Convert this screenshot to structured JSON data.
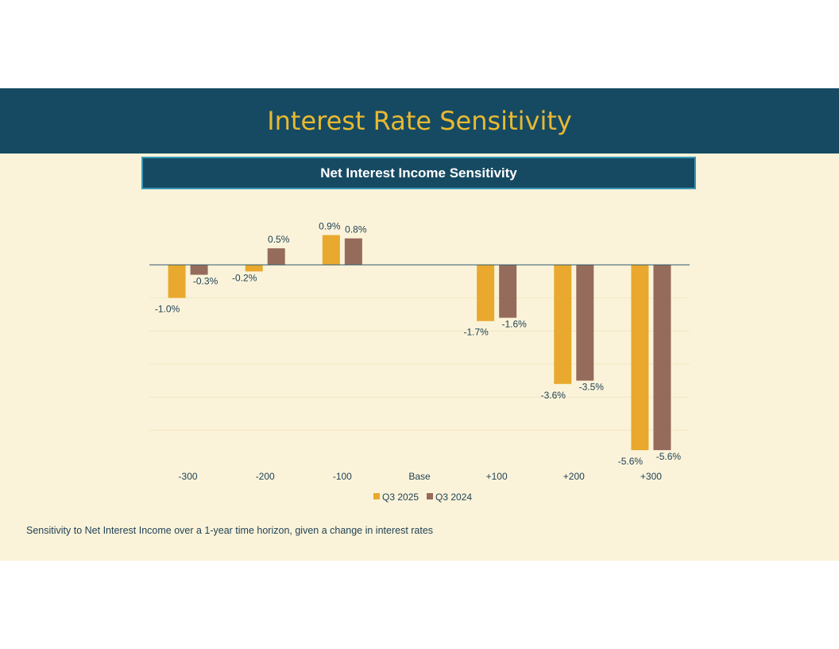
{
  "slide": {
    "title": "Interest Rate Sensitivity",
    "subtitle": "Net Interest Income Sensitivity",
    "footnote": "Sensitivity to Net Interest Income over a 1-year time horizon, given  a change in interest rates"
  },
  "colors": {
    "band": "#164a62",
    "title": "#e8b931",
    "background": "#fbf3d9",
    "q3_2025": "#e8a92e",
    "q3_2024": "#956b5b",
    "label": "#1f4257"
  },
  "chart_data": {
    "type": "bar",
    "title": "Net Interest Income Sensitivity",
    "categories": [
      "-300",
      "-200",
      "-100",
      "Base",
      "+100",
      "+200",
      "+300"
    ],
    "series": [
      {
        "name": "Q3 2025",
        "values": [
          -1.0,
          -0.2,
          0.9,
          null,
          -1.7,
          -3.6,
          -5.6
        ],
        "labels": [
          "-1.0%",
          "-0.2%",
          "0.9%",
          "",
          "-1.7%",
          "-3.6%",
          "-5.6%"
        ]
      },
      {
        "name": "Q3 2024",
        "values": [
          -0.3,
          0.5,
          0.8,
          null,
          -1.6,
          -3.5,
          -5.6
        ],
        "labels": [
          "-0.3%",
          "0.5%",
          "0.8%",
          "",
          "-1.6%",
          "-3.5%",
          "-5.6%"
        ]
      }
    ],
    "ylim": [
      -6.0,
      1.5
    ],
    "legend": "bottom",
    "xlabel": "",
    "ylabel": ""
  }
}
